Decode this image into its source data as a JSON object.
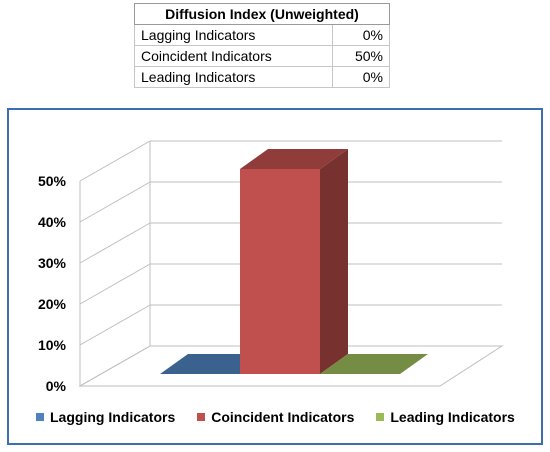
{
  "table": {
    "header": "Diffusion Index (Unweighted)",
    "rows": [
      {
        "label": "Lagging Indicators",
        "value": "0%"
      },
      {
        "label": "Coincident Indicators",
        "value": "50%"
      },
      {
        "label": "Leading Indicators",
        "value": "0%"
      }
    ]
  },
  "chart_data": {
    "type": "bar",
    "style": "3d-column",
    "categories": [
      "Lagging Indicators",
      "Coincident Indicators",
      "Leading Indicators"
    ],
    "values": [
      0,
      50,
      0
    ],
    "colors": [
      "#4f81bd",
      "#c0504d",
      "#9bbb59"
    ],
    "yticks": [
      "0%",
      "10%",
      "20%",
      "30%",
      "40%",
      "50%"
    ],
    "ylim": [
      0,
      50
    ],
    "grid": true,
    "legend_position": "bottom"
  }
}
